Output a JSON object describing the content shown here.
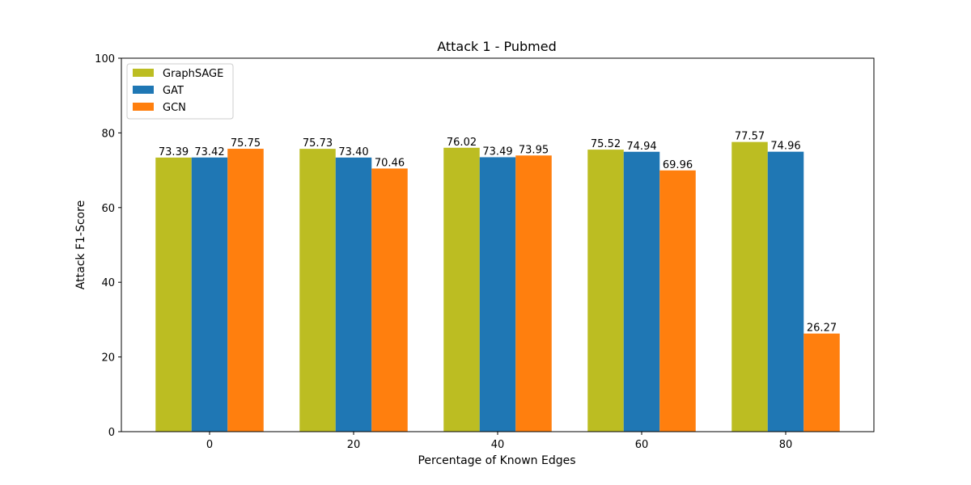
{
  "chart_data": {
    "type": "bar",
    "title": "Attack 1 - Pubmed",
    "xlabel": "Percentage of Known Edges",
    "ylabel": "Attack F1-Score",
    "categories": [
      "0",
      "20",
      "40",
      "60",
      "80"
    ],
    "ylim": [
      0,
      100
    ],
    "yticks": [
      0,
      20,
      40,
      60,
      80,
      100
    ],
    "grid": false,
    "legend_position": "top-left",
    "series": [
      {
        "name": "GraphSAGE",
        "color": "#bcbd22",
        "values": [
          73.39,
          75.73,
          76.02,
          75.52,
          77.57
        ],
        "labels": [
          "73.39",
          "75.73",
          "76.02",
          "75.52",
          "77.57"
        ]
      },
      {
        "name": "GAT",
        "color": "#1f77b4",
        "values": [
          73.42,
          73.4,
          73.49,
          74.94,
          74.96
        ],
        "labels": [
          "73.42",
          "73.40",
          "73.49",
          "74.94",
          "74.96"
        ]
      },
      {
        "name": "GCN",
        "color": "#ff7f0e",
        "values": [
          75.75,
          70.46,
          73.95,
          69.96,
          26.27
        ],
        "labels": [
          "75.75",
          "70.46",
          "73.95",
          "69.96",
          "26.27"
        ]
      }
    ]
  }
}
